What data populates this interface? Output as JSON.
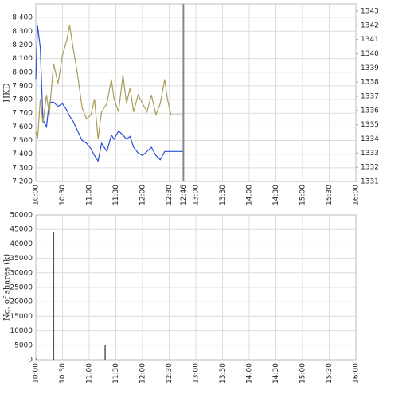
{
  "chart_data": [
    {
      "type": "line",
      "y_label": "HKD",
      "x": [
        "10:00",
        "10:02",
        "10:05",
        "10:08",
        "10:12",
        "10:15",
        "10:20",
        "10:25",
        "10:30",
        "10:35",
        "10:38",
        "10:42",
        "10:47",
        "10:52",
        "10:57",
        "11:02",
        "11:06",
        "11:10",
        "11:14",
        "11:20",
        "11:25",
        "11:28",
        "11:33",
        "11:38",
        "11:42",
        "11:46",
        "11:50",
        "11:55",
        "12:00",
        "12:05",
        "12:10",
        "12:15",
        "12:20",
        "12:25",
        "12:28",
        "12:32",
        "12:46"
      ],
      "series": [
        {
          "color": "#2a4fd6",
          "axis": "y",
          "values": [
            7.95,
            8.34,
            8.18,
            7.65,
            7.6,
            7.78,
            7.78,
            7.75,
            7.77,
            7.72,
            7.68,
            7.64,
            7.57,
            7.5,
            7.48,
            7.44,
            7.39,
            7.35,
            7.48,
            7.42,
            7.54,
            7.51,
            7.57,
            7.54,
            7.51,
            7.53,
            7.45,
            7.41,
            7.39,
            7.42,
            7.45,
            7.39,
            7.36,
            7.42,
            7.42,
            7.42,
            7.42
          ]
        },
        {
          "color": "#a89c5a",
          "axis": "y2",
          "values": [
            1334.5,
            1334.0,
            1336.8,
            1335.1,
            1337.1,
            1335.7,
            1339.3,
            1337.9,
            1339.9,
            1341.0,
            1342.0,
            1340.4,
            1338.5,
            1336.2,
            1335.4,
            1335.7,
            1336.8,
            1334.0,
            1335.9,
            1336.5,
            1338.2,
            1336.8,
            1335.9,
            1338.5,
            1336.5,
            1337.6,
            1335.9,
            1337.1,
            1336.5,
            1335.9,
            1337.1,
            1335.7,
            1336.5,
            1338.2,
            1336.8,
            1335.7,
            1335.7
          ]
        }
      ],
      "xlim": [
        "10:00",
        "16:00"
      ],
      "xticks": [
        "10:00",
        "10:30",
        "11:00",
        "11:30",
        "12:00",
        "12:30",
        "13:00",
        "13:30",
        "14:00",
        "14:30",
        "15:00",
        "15:30",
        "16:00"
      ],
      "vline_x": "12:46",
      "ylim": [
        7.2,
        8.5
      ],
      "yticks": [
        {
          "value": 7.2,
          "label": "7.200"
        },
        {
          "value": 7.3,
          "label": "7.300"
        },
        {
          "value": 7.4,
          "label": "7.400"
        },
        {
          "value": 7.5,
          "label": "7.500"
        },
        {
          "value": 7.6,
          "label": "7.600"
        },
        {
          "value": 7.7,
          "label": "7.700"
        },
        {
          "value": 7.8,
          "label": "7.800"
        },
        {
          "value": 7.9,
          "label": "7.900"
        },
        {
          "value": 8.0,
          "label": "8.000"
        },
        {
          "value": 8.1,
          "label": "8.100"
        },
        {
          "value": 8.2,
          "label": "8.200"
        },
        {
          "value": 8.3,
          "label": "8.300"
        },
        {
          "value": 8.4,
          "label": "8.400"
        }
      ],
      "y2lim": [
        1331,
        1343.5
      ],
      "y2ticks": [
        1331,
        1332,
        1333,
        1334,
        1335,
        1336,
        1337,
        1338,
        1339,
        1340,
        1341,
        1342,
        1343
      ],
      "grid": true
    },
    {
      "type": "bar",
      "y_label": "No. of shares (k)",
      "x": [
        "10:01",
        "10:20",
        "11:18"
      ],
      "values": [
        500,
        44000,
        5200
      ],
      "color": "#555555",
      "xlim": [
        "10:00",
        "16:00"
      ],
      "xticks": [
        "10:00",
        "10:30",
        "11:00",
        "11:30",
        "12:00",
        "12:30",
        "13:00",
        "13:30",
        "14:00",
        "14:30",
        "15:00",
        "15:30",
        "16:00"
      ],
      "ylim": [
        0,
        50000
      ],
      "yticks": [
        0,
        5000,
        10000,
        15000,
        20000,
        25000,
        30000,
        35000,
        40000,
        45000,
        50000
      ],
      "grid": true
    }
  ]
}
